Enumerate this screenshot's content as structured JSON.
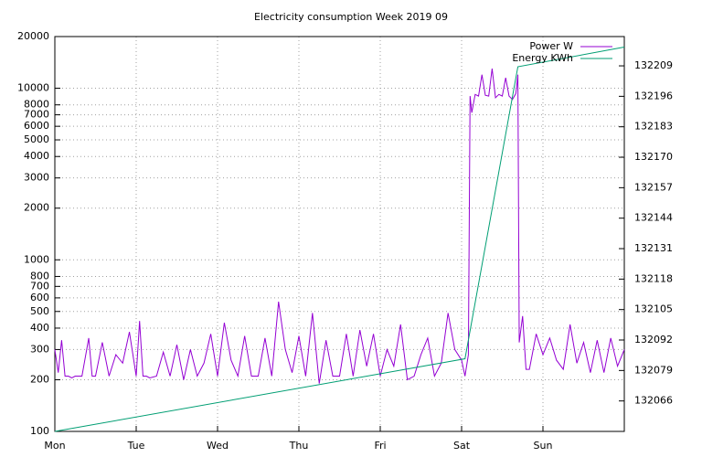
{
  "chart_data": {
    "type": "line",
    "title": "Electricity consumption Week 2019 09",
    "xlim": [
      0,
      168
    ],
    "xticks": [
      {
        "value": 0,
        "label": "Mon"
      },
      {
        "value": 24,
        "label": "Tue"
      },
      {
        "value": 48,
        "label": "Wed"
      },
      {
        "value": 72,
        "label": "Thu"
      },
      {
        "value": 96,
        "label": "Fri"
      },
      {
        "value": 120,
        "label": "Sat"
      },
      {
        "value": 144,
        "label": "Sun"
      }
    ],
    "ylim": [
      100,
      20000
    ],
    "log_scale": true,
    "yticks": [
      100,
      200,
      300,
      400,
      500,
      600,
      700,
      800,
      1000,
      2000,
      3000,
      4000,
      5000,
      6000,
      7000,
      8000,
      10000,
      20000
    ],
    "y2lim": [
      132053,
      132221.5
    ],
    "y2ticks": [
      132066,
      132079,
      132092,
      132105,
      132118,
      132131,
      132144,
      132157,
      132170,
      132183,
      132196,
      132209
    ],
    "grid": true,
    "legend": "top-right",
    "series": [
      {
        "name": "Power W",
        "color": "#9400d3",
        "x": [
          0,
          1,
          2,
          3,
          4,
          5,
          6,
          8,
          10,
          11,
          12,
          14,
          16,
          18,
          20,
          22,
          24,
          25,
          26,
          27,
          28,
          30,
          32,
          34,
          36,
          38,
          40,
          42,
          44,
          46,
          48,
          50,
          52,
          54,
          56,
          58,
          60,
          62,
          64,
          66,
          68,
          70,
          72,
          74,
          76,
          78,
          80,
          82,
          84,
          86,
          88,
          90,
          92,
          94,
          96,
          98,
          100,
          102,
          104,
          106,
          108,
          110,
          112,
          114,
          116,
          118,
          120,
          121,
          122,
          122.5,
          123,
          124,
          125,
          126,
          127,
          128,
          129,
          130,
          131,
          132,
          133,
          134,
          135,
          136,
          136.6,
          137,
          138,
          139,
          140,
          142,
          144,
          146,
          148,
          150,
          152,
          154,
          156,
          158,
          160,
          162,
          164,
          166,
          168
        ],
        "values": [
          300,
          220,
          340,
          210,
          210,
          205,
          210,
          210,
          350,
          210,
          210,
          330,
          210,
          280,
          250,
          380,
          210,
          440,
          210,
          210,
          205,
          210,
          290,
          210,
          320,
          200,
          300,
          210,
          250,
          370,
          210,
          430,
          260,
          210,
          360,
          210,
          210,
          350,
          210,
          570,
          300,
          220,
          360,
          210,
          490,
          190,
          340,
          210,
          210,
          370,
          210,
          390,
          240,
          370,
          210,
          300,
          240,
          420,
          200,
          210,
          280,
          350,
          210,
          250,
          490,
          300,
          260,
          210,
          280,
          9000,
          7200,
          9200,
          9000,
          12000,
          9100,
          9000,
          13000,
          8800,
          9200,
          9000,
          11500,
          9000,
          8600,
          9300,
          12000,
          330,
          470,
          230,
          230,
          370,
          280,
          350,
          260,
          230,
          420,
          250,
          330,
          220,
          340,
          220,
          350,
          240,
          300
        ]
      },
      {
        "name": "Energy KWh",
        "color": "#009e73",
        "axis": "y2",
        "x": [
          0,
          121,
          136.6,
          168
        ],
        "values": [
          132053,
          132084,
          132208.6,
          132217
        ]
      }
    ]
  }
}
